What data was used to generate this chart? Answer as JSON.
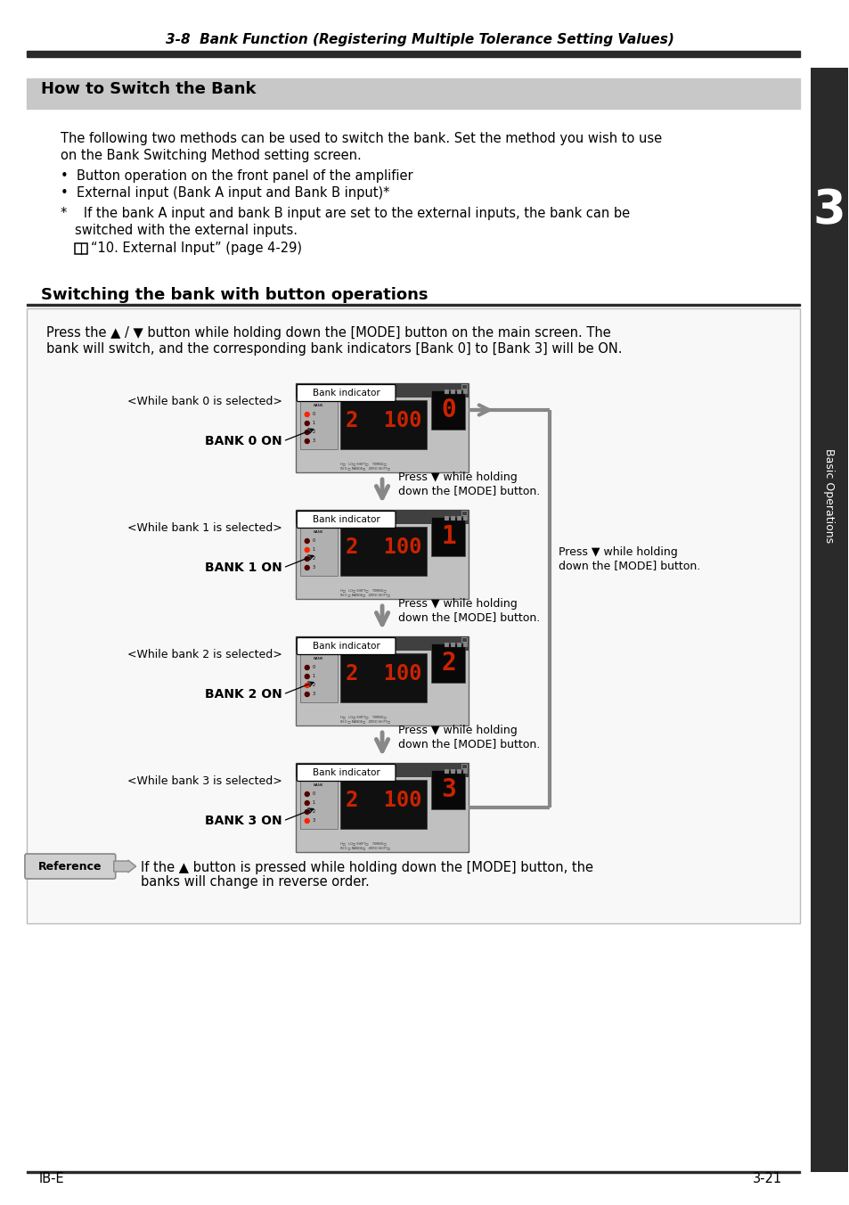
{
  "page_title": "3-8  Bank Function (Registering Multiple Tolerance Setting Values)",
  "section1_title": "How to Switch the Bank",
  "body_line1": "The following two methods can be used to switch the bank. Set the method you wish to use",
  "body_line2": "on the Bank Switching Method setting screen.",
  "bullet1": "•  Button operation on the front panel of the amplifier",
  "bullet2": "•  External input (Bank A input and Bank B input)*",
  "footnote1": "*    If the bank A input and bank B input are set to the external inputs, the bank can be",
  "footnote2": "     switched with the external inputs.",
  "ref_text": "“10. External Input” (page 4-29)",
  "section2_title": "Switching the bank with button operations",
  "press_line1": "Press the ▲ / ▼ button while holding down the [MODE] button on the main screen. The",
  "press_line2": "bank will switch, and the corresponding bank indicators [Bank 0] to [Bank 3] will be ON.",
  "bank_sel_labels": [
    "<While bank 0 is selected>",
    "<While bank 1 is selected>",
    "<While bank 2 is selected>",
    "<While bank 3 is selected>"
  ],
  "bank_on_labels": [
    "BANK 0 ON",
    "BANK 1 ON",
    "BANK 2 ON",
    "BANK 3 ON"
  ],
  "down_arrow_text": "Press ▼ while holding\ndown the [MODE] button.",
  "right_text": "Press ▼ while holding\ndown the [MODE] button.",
  "ref_label": "Reference",
  "ref_body1": "If the ▲ button is pressed while holding down the [MODE] button, the",
  "ref_body2": "banks will change in reverse order.",
  "sidebar_num": "3",
  "sidebar_text": "Basic Operations",
  "footer_left": "IB-E",
  "footer_right": "3-21",
  "bg": "#ffffff",
  "title_bar": "#2a2a2a",
  "sec1_bg": "#c8c8c8",
  "sec2_line": "#2a2a2a",
  "sidebar_bg": "#2a2a2a",
  "arrow_gray": "#888888",
  "dev_outer": "#c0c0c0",
  "dev_top": "#404040",
  "dev_screen": "#101010",
  "dev_red": "#cc2200",
  "dev_panel": "#a0a0a0",
  "indicator_bg": "#ffffff"
}
